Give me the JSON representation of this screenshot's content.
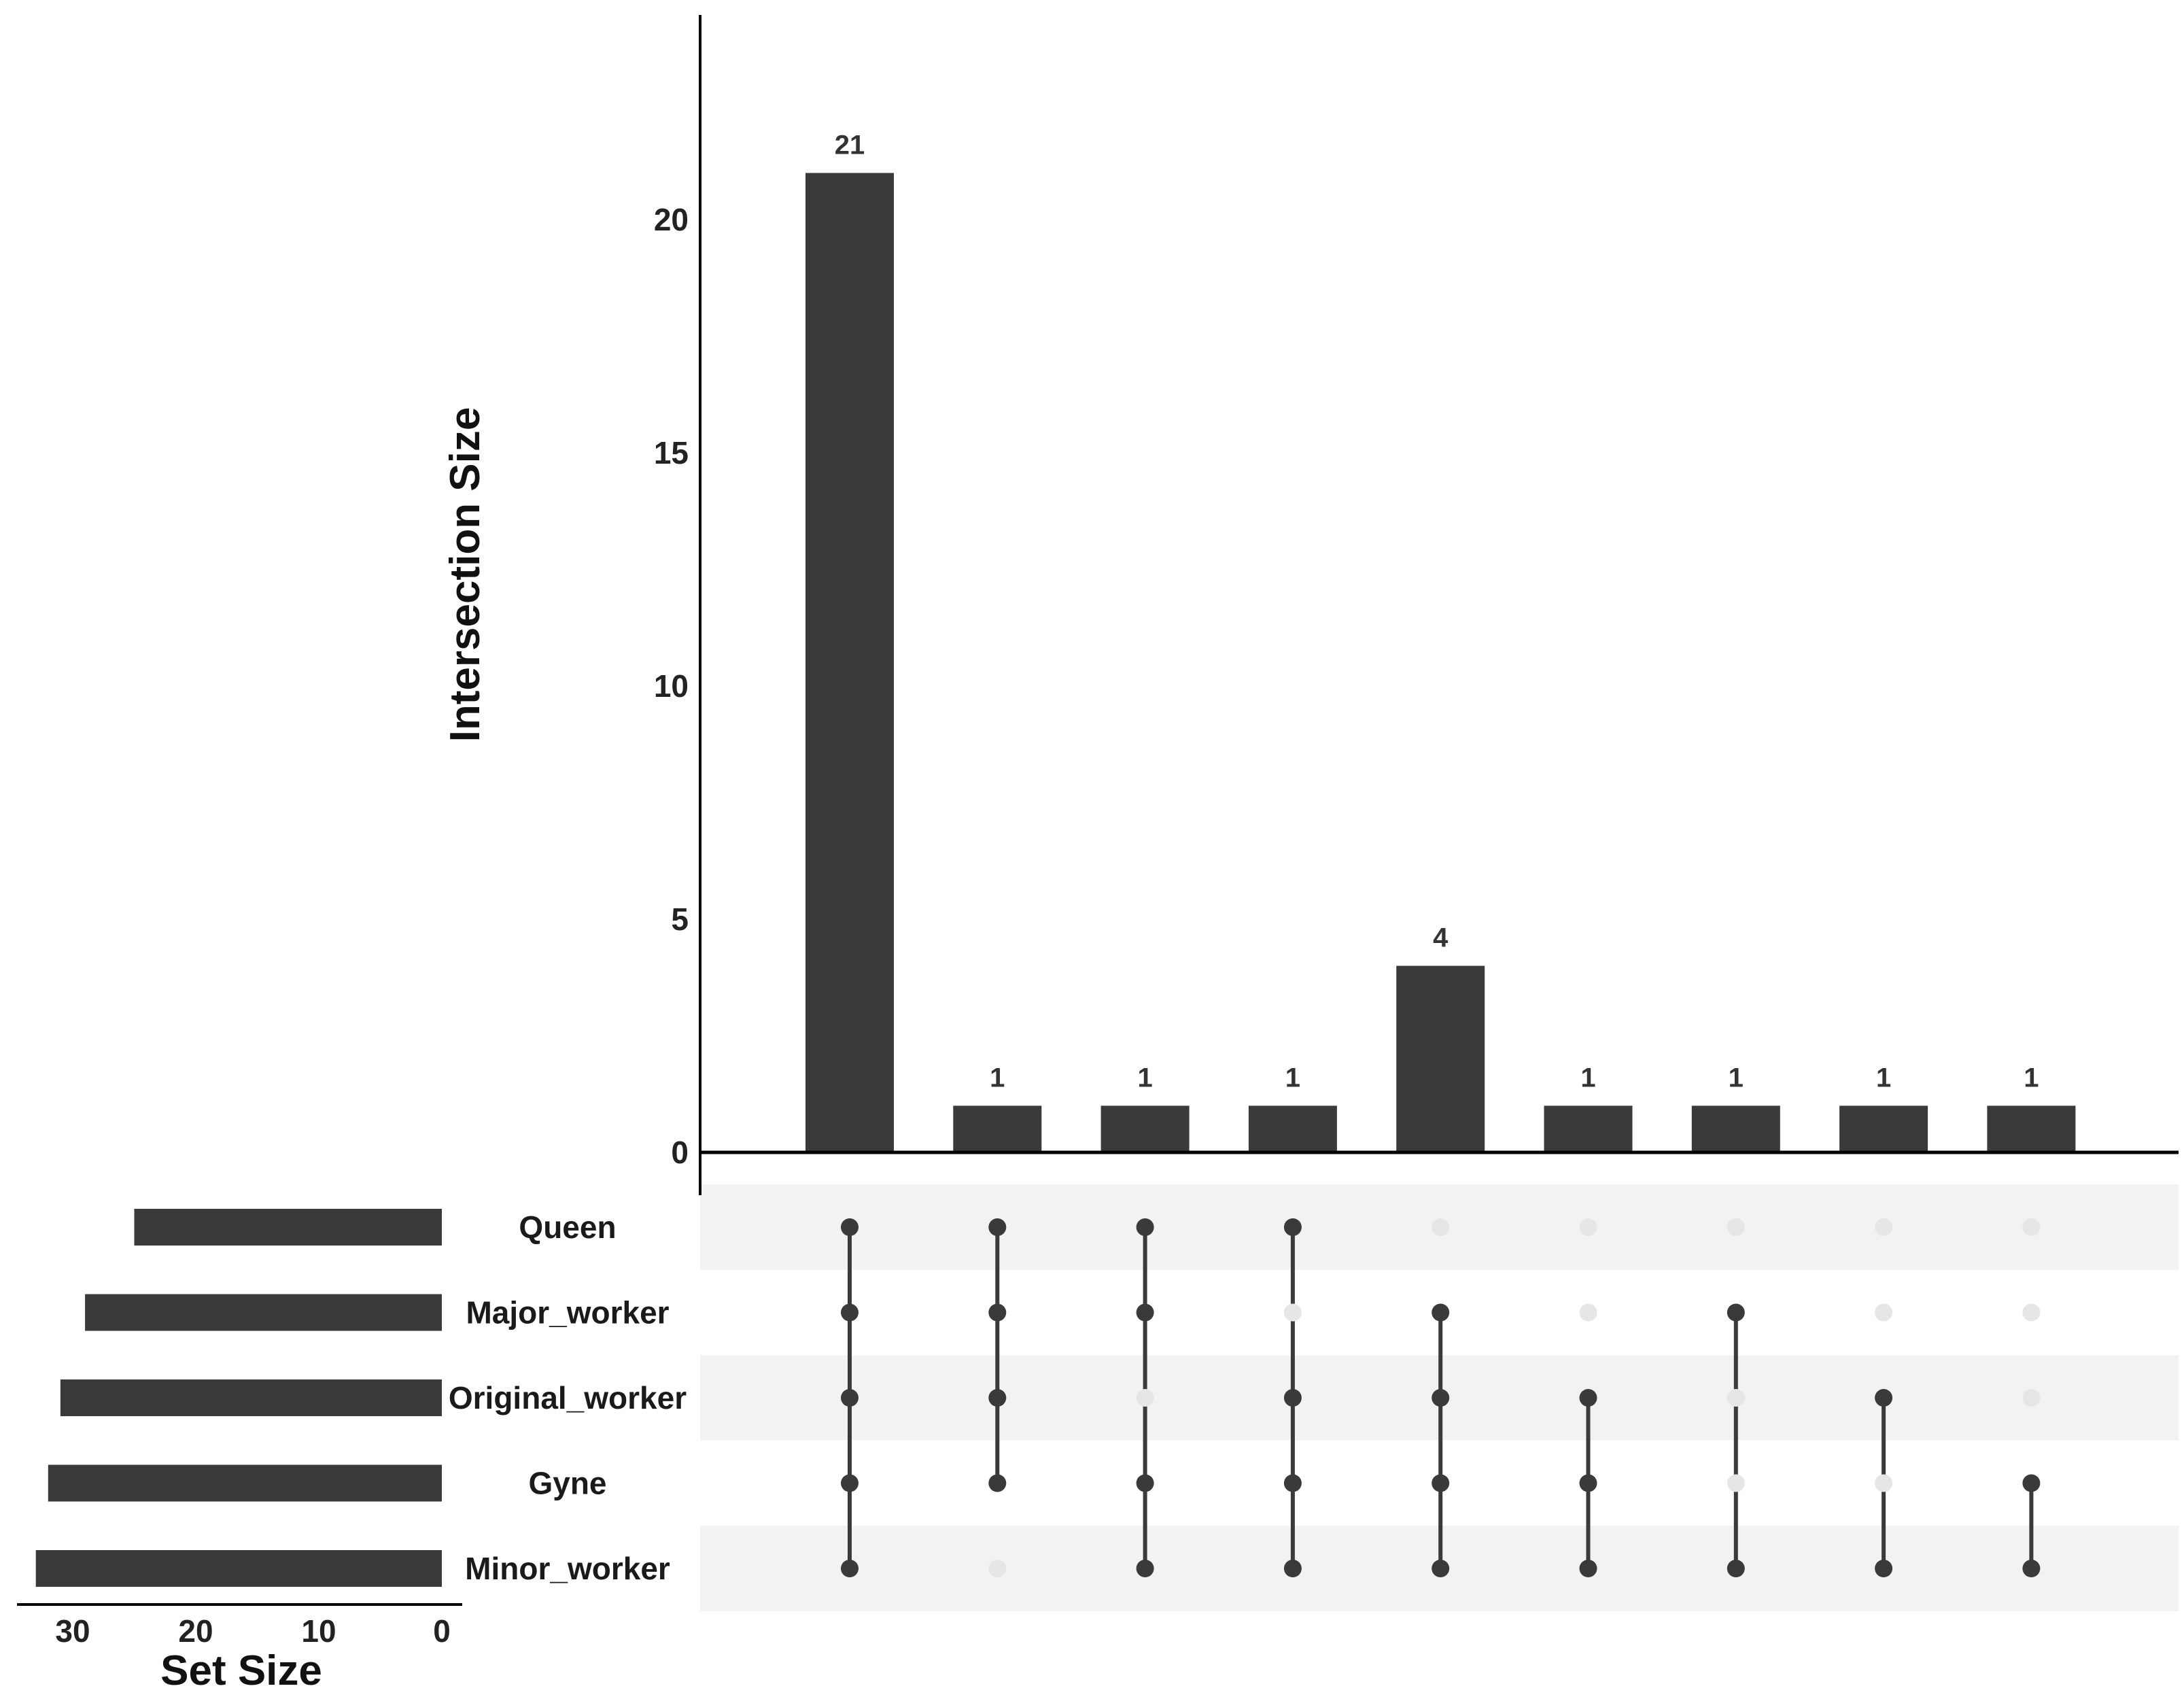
{
  "chart_data": {
    "type": "upset",
    "intersection_axis": {
      "label": "Intersection Size",
      "ticks": [
        0,
        5,
        10,
        15,
        20
      ],
      "range": [
        0,
        24
      ]
    },
    "set_size_axis": {
      "label": "Set Size",
      "ticks": [
        30,
        20,
        10,
        0
      ],
      "range": [
        34,
        0
      ]
    },
    "sets": [
      {
        "name": "Queen",
        "size": 25
      },
      {
        "name": "Major_worker",
        "size": 29
      },
      {
        "name": "Original_worker",
        "size": 31
      },
      {
        "name": "Gyne",
        "size": 32
      },
      {
        "name": "Minor_worker",
        "size": 33
      }
    ],
    "intersections": [
      {
        "sets": [
          "Queen",
          "Major_worker",
          "Original_worker",
          "Gyne",
          "Minor_worker"
        ],
        "size": 21
      },
      {
        "sets": [
          "Queen",
          "Major_worker",
          "Original_worker",
          "Gyne"
        ],
        "size": 1
      },
      {
        "sets": [
          "Queen",
          "Major_worker",
          "Gyne",
          "Minor_worker"
        ],
        "size": 1
      },
      {
        "sets": [
          "Queen",
          "Original_worker",
          "Gyne",
          "Minor_worker"
        ],
        "size": 1
      },
      {
        "sets": [
          "Major_worker",
          "Original_worker",
          "Gyne",
          "Minor_worker"
        ],
        "size": 4
      },
      {
        "sets": [
          "Original_worker",
          "Gyne",
          "Minor_worker"
        ],
        "size": 1
      },
      {
        "sets": [
          "Major_worker",
          "Minor_worker"
        ],
        "size": 1
      },
      {
        "sets": [
          "Original_worker",
          "Minor_worker"
        ],
        "size": 1
      },
      {
        "sets": [
          "Gyne",
          "Minor_worker"
        ],
        "size": 1
      }
    ],
    "colors": {
      "bar": "#3a3a3a",
      "dot_active": "#3a3a3a",
      "dot_inactive": "#e6e6e6",
      "stripe": "#f2f2f2"
    }
  }
}
